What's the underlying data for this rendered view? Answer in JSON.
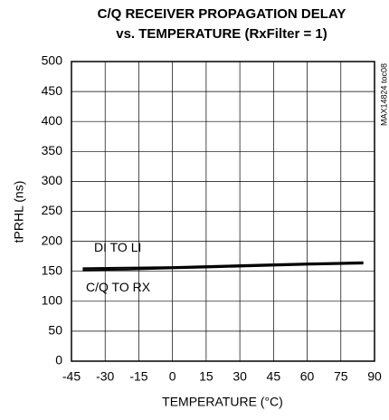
{
  "chart_data": {
    "type": "line",
    "title": [
      "C/Q RECEIVER PROPAGATION DELAY",
      "vs. TEMPERATURE (RxFilter = 1)"
    ],
    "xlabel": "TEMPERATURE (°C)",
    "ylabel": "tPRHL (ns)",
    "note": "MAX14824 toc08",
    "x": [
      -40,
      -20,
      0,
      20,
      40,
      60,
      85
    ],
    "series": [
      {
        "name": "DI TO LI",
        "color": "#000000",
        "values": [
          155,
          156,
          157,
          159,
          161,
          163,
          165
        ]
      },
      {
        "name": "C/Q TO RX",
        "color": "#000000",
        "values": [
          152,
          153,
          155,
          157,
          159,
          161,
          163
        ]
      }
    ],
    "xlim": [
      -45,
      90
    ],
    "xticks": [
      -45,
      -30,
      -15,
      0,
      15,
      30,
      45,
      60,
      75,
      90
    ],
    "ylim": [
      0,
      500
    ],
    "yticks": [
      0,
      50,
      100,
      150,
      200,
      250,
      300,
      350,
      400,
      450,
      500
    ],
    "grid": true
  }
}
